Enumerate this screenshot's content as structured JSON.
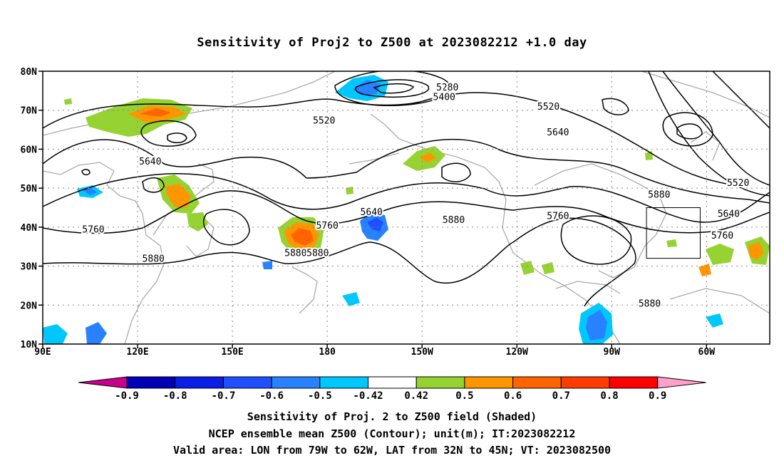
{
  "title": "Sensitivity of Proj2 to Z500 at 2023082212 +1.0 day",
  "axes": {
    "lat_labels": [
      "80N",
      "70N",
      "60N",
      "50N",
      "40N",
      "30N",
      "20N",
      "10N"
    ],
    "lon_labels": [
      "90E",
      "120E",
      "150E",
      "180",
      "150W",
      "120W",
      "90W",
      "60W"
    ],
    "lon_range": [
      90,
      320
    ],
    "lat_range": [
      10,
      80
    ],
    "grid": true
  },
  "colorbar": {
    "ticks": [
      "-0.9",
      "-0.8",
      "-0.7",
      "-0.6",
      "-0.5",
      "-0.42",
      "0.42",
      "0.5",
      "0.6",
      "0.7",
      "0.8",
      "0.9"
    ],
    "colors": [
      "#c8008c",
      "#0000b4",
      "#0a1ee6",
      "#1e50ff",
      "#2882ff",
      "#00c8ff",
      "#ffffff",
      "#96d232",
      "#ff9600",
      "#ff6400",
      "#ff3c00",
      "#ff0000",
      "#ffa0c8"
    ]
  },
  "contour_labels": [
    {
      "text": "5280",
      "lon": 218,
      "lat": 76
    },
    {
      "text": "5400",
      "lon": 217,
      "lat": 73.5
    },
    {
      "text": "5520",
      "lon": 179,
      "lat": 67.5
    },
    {
      "text": "5520",
      "lon": 250,
      "lat": 71
    },
    {
      "text": "5640",
      "lon": 253,
      "lat": 64.5
    },
    {
      "text": "5520",
      "lon": 310,
      "lat": 51.5
    },
    {
      "text": "5640",
      "lon": 124,
      "lat": 57
    },
    {
      "text": "5640",
      "lon": 194,
      "lat": 44
    },
    {
      "text": "5640",
      "lon": 307,
      "lat": 43.5
    },
    {
      "text": "5760",
      "lon": 106,
      "lat": 39.5
    },
    {
      "text": "5760",
      "lon": 180,
      "lat": 40.5
    },
    {
      "text": "5760",
      "lon": 253,
      "lat": 43
    },
    {
      "text": "5760",
      "lon": 305,
      "lat": 38
    },
    {
      "text": "5880",
      "lon": 220,
      "lat": 42
    },
    {
      "text": "5880",
      "lon": 285,
      "lat": 48.5
    },
    {
      "text": "5880",
      "lon": 170,
      "lat": 33.5
    },
    {
      "text": "5880",
      "lon": 177,
      "lat": 33.5
    },
    {
      "text": "5880",
      "lon": 125,
      "lat": 32
    },
    {
      "text": "5880",
      "lon": 282,
      "lat": 20.5
    }
  ],
  "valid_area": {
    "lon": [
      281,
      298
    ],
    "lat": [
      32,
      45
    ]
  },
  "captions": [
    "Sensitivity of Proj. 2 to Z500 field (Shaded)",
    "NCEP ensemble mean Z500 (Contour); unit(m); IT:2023082212",
    "Valid area: LON from 79W to 62W, LAT from 32N to 45N; VT: 2023082500"
  ]
}
